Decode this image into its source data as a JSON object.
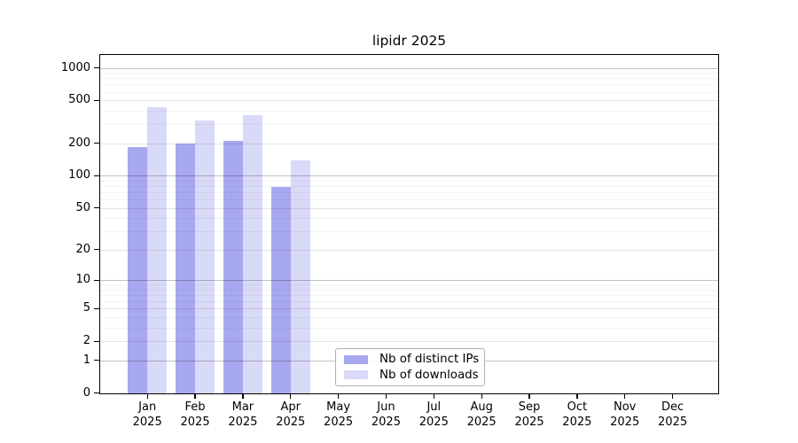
{
  "chart_data": {
    "type": "bar",
    "title": "lipidr 2025",
    "categories": [
      "Jan",
      "Feb",
      "Mar",
      "Apr",
      "May",
      "Jun",
      "Jul",
      "Aug",
      "Sep",
      "Oct",
      "Nov",
      "Dec"
    ],
    "category_year": "2025",
    "series": [
      {
        "name": "Nb of distinct IPs",
        "color": "#a8a8f0",
        "values": [
          184,
          198,
          210,
          78,
          null,
          null,
          null,
          null,
          null,
          null,
          null,
          null
        ]
      },
      {
        "name": "Nb of downloads",
        "color": "#d9d9f8",
        "values": [
          432,
          324,
          362,
          138,
          null,
          null,
          null,
          null,
          null,
          null,
          null,
          null
        ]
      }
    ],
    "y_axis": {
      "scale": "log1p",
      "ticks": [
        0,
        1,
        2,
        5,
        10,
        20,
        50,
        100,
        200,
        500,
        1000
      ],
      "tick_labels": [
        "0",
        "1",
        "2",
        "5",
        "10",
        "20",
        "50",
        "100",
        "200",
        "500",
        "1000"
      ],
      "min": 0,
      "max": 1000
    },
    "x_axis": {
      "tick_labels_line2": "2025"
    },
    "gridlines": {
      "major": [
        1,
        10,
        100,
        1000
      ],
      "mid": [
        2,
        5,
        20,
        50,
        200,
        500
      ],
      "minor": [
        3,
        4,
        6,
        7,
        8,
        9,
        30,
        40,
        60,
        70,
        80,
        90,
        300,
        400,
        600,
        700,
        800,
        900
      ]
    },
    "legend": {
      "items": [
        "Nb of distinct IPs",
        "Nb of downloads"
      ],
      "position": "bottom-center"
    },
    "grid": true
  }
}
